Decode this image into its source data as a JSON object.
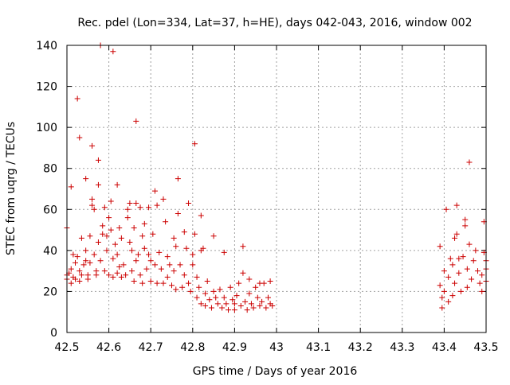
{
  "chart_data": {
    "type": "scatter",
    "title": "Rec. pdel (Lon=334, Lat=37, h=HE), days 042-043, 2016, window 002",
    "xlabel": "GPS time / Days of year 2016",
    "ylabel": "STEC from uqrg / TECUs",
    "xlim": [
      42.5,
      43.5
    ],
    "ylim": [
      0,
      140
    ],
    "x_ticks": [
      "42.5",
      "42.6",
      "42.7",
      "42.8",
      "42.9",
      "43",
      "43.1",
      "43.2",
      "43.3",
      "43.4",
      "43.5"
    ],
    "y_ticks": [
      "0",
      "20",
      "40",
      "60",
      "80",
      "100",
      "120",
      "140"
    ],
    "grid": true,
    "marker": "+",
    "marker_color": "#cc0000",
    "series": [
      {
        "name": "STEC",
        "points": [
          [
            42.5,
            51
          ],
          [
            42.51,
            71
          ],
          [
            42.525,
            114
          ],
          [
            42.53,
            95
          ],
          [
            42.545,
            75
          ],
          [
            42.56,
            91
          ],
          [
            42.575,
            84
          ],
          [
            42.58,
            140
          ],
          [
            42.61,
            137
          ],
          [
            42.62,
            72
          ],
          [
            42.665,
            103
          ],
          [
            42.675,
            61
          ],
          [
            42.71,
            69
          ],
          [
            42.73,
            65
          ],
          [
            42.765,
            75
          ],
          [
            42.79,
            63
          ],
          [
            42.805,
            92
          ],
          [
            42.82,
            57
          ],
          [
            42.85,
            47
          ],
          [
            42.92,
            42
          ],
          [
            42.5,
            28
          ],
          [
            42.5,
            26
          ],
          [
            42.505,
            29
          ],
          [
            42.51,
            24
          ],
          [
            42.51,
            31
          ],
          [
            42.515,
            38
          ],
          [
            42.515,
            27
          ],
          [
            42.52,
            26
          ],
          [
            42.52,
            34
          ],
          [
            42.525,
            37
          ],
          [
            42.53,
            30
          ],
          [
            42.53,
            25
          ],
          [
            42.535,
            28
          ],
          [
            42.535,
            46
          ],
          [
            42.54,
            33
          ],
          [
            42.545,
            35
          ],
          [
            42.545,
            40
          ],
          [
            42.55,
            26
          ],
          [
            42.55,
            28
          ],
          [
            42.555,
            47
          ],
          [
            42.555,
            34
          ],
          [
            42.56,
            65
          ],
          [
            42.56,
            62
          ],
          [
            42.565,
            60
          ],
          [
            42.565,
            38
          ],
          [
            42.57,
            30
          ],
          [
            42.57,
            28
          ],
          [
            42.575,
            72
          ],
          [
            42.575,
            44
          ],
          [
            42.58,
            35
          ],
          [
            42.585,
            52
          ],
          [
            42.585,
            48
          ],
          [
            42.59,
            61
          ],
          [
            42.59,
            30
          ],
          [
            42.595,
            47
          ],
          [
            42.595,
            40
          ],
          [
            42.6,
            56
          ],
          [
            42.6,
            28
          ],
          [
            42.605,
            64
          ],
          [
            42.605,
            50
          ],
          [
            42.61,
            36
          ],
          [
            42.61,
            27
          ],
          [
            42.615,
            43
          ],
          [
            42.62,
            38
          ],
          [
            42.62,
            29
          ],
          [
            42.625,
            51
          ],
          [
            42.625,
            32
          ],
          [
            42.63,
            46
          ],
          [
            42.63,
            27
          ],
          [
            42.635,
            33
          ],
          [
            42.64,
            28
          ],
          [
            42.645,
            60
          ],
          [
            42.645,
            56
          ],
          [
            42.65,
            63
          ],
          [
            42.65,
            44
          ],
          [
            42.655,
            40
          ],
          [
            42.655,
            30
          ],
          [
            42.66,
            51
          ],
          [
            42.66,
            25
          ],
          [
            42.665,
            63
          ],
          [
            42.665,
            35
          ],
          [
            42.67,
            38
          ],
          [
            42.675,
            28
          ],
          [
            42.68,
            47
          ],
          [
            42.68,
            24
          ],
          [
            42.685,
            53
          ],
          [
            42.685,
            41
          ],
          [
            42.69,
            31
          ],
          [
            42.695,
            61
          ],
          [
            42.695,
            38
          ],
          [
            42.7,
            35
          ],
          [
            42.7,
            25
          ],
          [
            42.705,
            48
          ],
          [
            42.71,
            33
          ],
          [
            42.715,
            62
          ],
          [
            42.715,
            24
          ],
          [
            42.72,
            39
          ],
          [
            42.725,
            31
          ],
          [
            42.73,
            24
          ],
          [
            42.735,
            54
          ],
          [
            42.74,
            37
          ],
          [
            42.74,
            27
          ],
          [
            42.745,
            33
          ],
          [
            42.75,
            23
          ],
          [
            42.755,
            46
          ],
          [
            42.755,
            30
          ],
          [
            42.76,
            42
          ],
          [
            42.76,
            21
          ],
          [
            42.765,
            58
          ],
          [
            42.77,
            33
          ],
          [
            42.775,
            22
          ],
          [
            42.78,
            49
          ],
          [
            42.78,
            28
          ],
          [
            42.785,
            41
          ],
          [
            42.79,
            24
          ],
          [
            42.795,
            20
          ],
          [
            42.8,
            38
          ],
          [
            42.8,
            33
          ],
          [
            42.805,
            48
          ],
          [
            42.81,
            27
          ],
          [
            42.81,
            17
          ],
          [
            42.815,
            22
          ],
          [
            42.82,
            40
          ],
          [
            42.82,
            14
          ],
          [
            42.825,
            41
          ],
          [
            42.83,
            19
          ],
          [
            42.83,
            13
          ],
          [
            42.835,
            25
          ],
          [
            42.84,
            16
          ],
          [
            42.845,
            12
          ],
          [
            42.85,
            20
          ],
          [
            42.855,
            17
          ],
          [
            42.86,
            14
          ],
          [
            42.865,
            21
          ],
          [
            42.87,
            12
          ],
          [
            42.875,
            39
          ],
          [
            42.875,
            17
          ],
          [
            42.88,
            14
          ],
          [
            42.885,
            11
          ],
          [
            42.89,
            22
          ],
          [
            42.895,
            16
          ],
          [
            42.9,
            14
          ],
          [
            42.9,
            11
          ],
          [
            42.905,
            18
          ],
          [
            42.91,
            24
          ],
          [
            42.915,
            13
          ],
          [
            42.92,
            29
          ],
          [
            42.925,
            15
          ],
          [
            42.93,
            11
          ],
          [
            42.935,
            26
          ],
          [
            42.935,
            19
          ],
          [
            42.94,
            14
          ],
          [
            42.945,
            12
          ],
          [
            42.95,
            22
          ],
          [
            42.955,
            17
          ],
          [
            42.96,
            24
          ],
          [
            42.96,
            13
          ],
          [
            42.965,
            15
          ],
          [
            42.97,
            24
          ],
          [
            42.975,
            12
          ],
          [
            42.98,
            17
          ],
          [
            42.985,
            14
          ],
          [
            42.985,
            25
          ],
          [
            42.99,
            13
          ],
          [
            43.39,
            42
          ],
          [
            43.39,
            23
          ],
          [
            43.395,
            17
          ],
          [
            43.395,
            12
          ],
          [
            43.4,
            30
          ],
          [
            43.4,
            20
          ],
          [
            43.405,
            60
          ],
          [
            43.41,
            27
          ],
          [
            43.41,
            15
          ],
          [
            43.415,
            36
          ],
          [
            43.42,
            33
          ],
          [
            43.42,
            18
          ],
          [
            43.425,
            46
          ],
          [
            43.425,
            24
          ],
          [
            43.43,
            62
          ],
          [
            43.43,
            48
          ],
          [
            43.435,
            36
          ],
          [
            43.435,
            29
          ],
          [
            43.44,
            20
          ],
          [
            43.445,
            37
          ],
          [
            43.45,
            55
          ],
          [
            43.45,
            52
          ],
          [
            43.455,
            31
          ],
          [
            43.455,
            22
          ],
          [
            43.46,
            83
          ],
          [
            43.46,
            43
          ],
          [
            43.465,
            26
          ],
          [
            43.47,
            35
          ],
          [
            43.475,
            40
          ],
          [
            43.48,
            30
          ],
          [
            43.485,
            24
          ],
          [
            43.49,
            28
          ],
          [
            43.49,
            20
          ],
          [
            43.495,
            54
          ],
          [
            43.495,
            39
          ],
          [
            43.5,
            31
          ],
          [
            43.5,
            25
          ],
          [
            43.5,
            35
          ]
        ]
      }
    ]
  }
}
